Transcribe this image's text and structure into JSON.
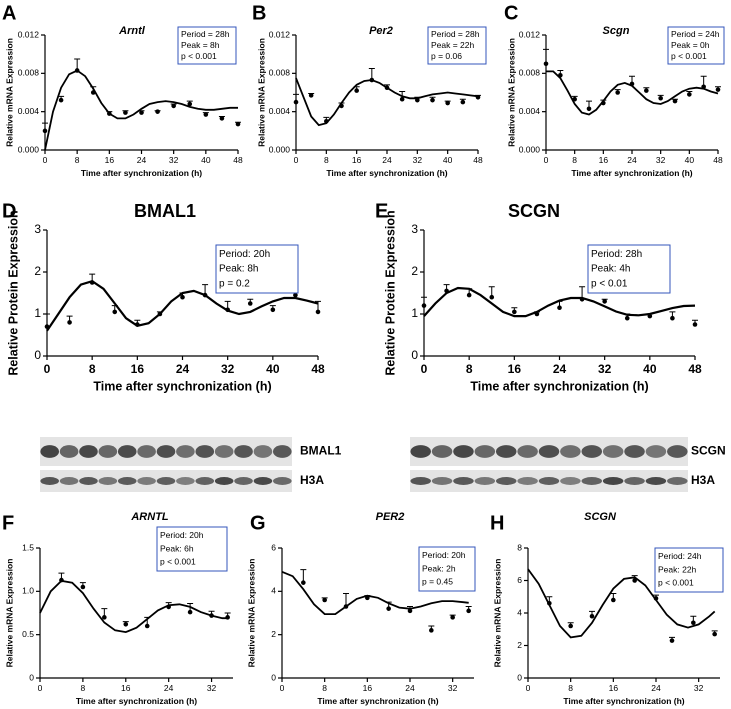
{
  "chart_data": [
    {
      "type": "line",
      "panel": "A",
      "title": "Arntl",
      "title_italic": true,
      "xlabel": "Time after synchronization (h)",
      "ylabel": "Relative mRNA Expression",
      "xlim": [
        0,
        48
      ],
      "ylim": [
        0,
        0.012
      ],
      "xticks": [
        0,
        8,
        16,
        24,
        32,
        40,
        48
      ],
      "yticks": [
        {
          "value": 0,
          "label": "0.000"
        },
        {
          "value": 0.004,
          "label": "0.004"
        },
        {
          "value": 0.008,
          "label": "0.008"
        },
        {
          "value": 0.012,
          "label": "0.012"
        }
      ],
      "annotation": [
        "Period = 28h",
        "Peak = 8h",
        "p < 0.001"
      ],
      "series": [
        {
          "style": "points",
          "color": "#000000",
          "x": [
            0,
            4,
            8,
            12,
            16,
            20,
            24,
            28,
            32,
            36,
            40,
            44,
            48
          ],
          "values": [
            0.002,
            0.0052,
            0.0083,
            0.006,
            0.0038,
            0.0039,
            0.0039,
            0.004,
            0.0046,
            0.0048,
            0.0037,
            0.0033,
            0.0027
          ],
          "errors": [
            0.0008,
            0.0004,
            0.0012,
            0.0006,
            0.0002,
            0.0002,
            0.0002,
            0.0001,
            0.0002,
            0.0003,
            0.0002,
            0.0002,
            0.0002
          ]
        },
        {
          "style": "line",
          "color": "#000000",
          "x": [
            0,
            2,
            4,
            6,
            8,
            10,
            12,
            14,
            16,
            18,
            20,
            22,
            24,
            26,
            28,
            30,
            32,
            34,
            36,
            38,
            40,
            42,
            44,
            46,
            48
          ],
          "values": [
            0,
            0.004,
            0.0065,
            0.0079,
            0.0083,
            0.0077,
            0.0064,
            0.0049,
            0.0038,
            0.0033,
            0.0033,
            0.0037,
            0.0043,
            0.0048,
            0.005,
            0.0051,
            0.005,
            0.0048,
            0.0045,
            0.0043,
            0.0042,
            0.0042,
            0.0043,
            0.0044,
            0.0044
          ]
        }
      ]
    },
    {
      "type": "line",
      "panel": "B",
      "title": "Per2",
      "title_italic": true,
      "xlabel": "Time after synchronization (h)",
      "ylabel": "Relative mRNA Expression",
      "xlim": [
        0,
        48
      ],
      "ylim": [
        0,
        0.012
      ],
      "xticks": [
        0,
        8,
        16,
        24,
        32,
        40,
        48
      ],
      "yticks": [
        {
          "value": 0,
          "label": "0.000"
        },
        {
          "value": 0.004,
          "label": "0.004"
        },
        {
          "value": 0.008,
          "label": "0.008"
        },
        {
          "value": 0.012,
          "label": "0.012"
        }
      ],
      "annotation": [
        "Period = 28h",
        "Peak = 22h",
        "p = 0.06"
      ],
      "series": [
        {
          "style": "points",
          "color": "#000000",
          "x": [
            0,
            4,
            8,
            12,
            16,
            20,
            24,
            28,
            32,
            36,
            40,
            44,
            48
          ],
          "values": [
            0.005,
            0.0057,
            0.003,
            0.0046,
            0.0062,
            0.0073,
            0.0065,
            0.0053,
            0.0052,
            0.0052,
            0.0049,
            0.005,
            0.0055
          ],
          "errors": [
            0.0008,
            0.0002,
            0.0004,
            0.0003,
            0.0004,
            0.0012,
            0.0003,
            0.0008,
            0.0003,
            0.0003,
            0.0002,
            0.0003,
            0.0002
          ]
        },
        {
          "style": "line",
          "color": "#000000",
          "x": [
            0,
            2,
            4,
            6,
            8,
            10,
            12,
            14,
            16,
            18,
            20,
            22,
            24,
            26,
            28,
            30,
            32,
            34,
            36,
            38,
            40,
            42,
            44,
            46,
            48
          ],
          "values": [
            0.0075,
            0.0055,
            0.0035,
            0.0026,
            0.0028,
            0.0037,
            0.0049,
            0.006,
            0.0068,
            0.0072,
            0.0073,
            0.007,
            0.0065,
            0.006,
            0.0056,
            0.0054,
            0.0054,
            0.0056,
            0.0058,
            0.0059,
            0.006,
            0.0059,
            0.0058,
            0.0057,
            0.0056
          ]
        }
      ]
    },
    {
      "type": "line",
      "panel": "C",
      "title": "Scgn",
      "title_italic": true,
      "xlabel": "Time after synchronization (h)",
      "ylabel": "Relative mRNA Expression",
      "xlim": [
        0,
        48
      ],
      "ylim": [
        0,
        0.012
      ],
      "xticks": [
        0,
        8,
        16,
        24,
        32,
        40,
        48
      ],
      "yticks": [
        {
          "value": 0,
          "label": "0.000"
        },
        {
          "value": 0.004,
          "label": "0.004"
        },
        {
          "value": 0.008,
          "label": "0.008"
        },
        {
          "value": 0.012,
          "label": "0.012"
        }
      ],
      "annotation": [
        "Period = 24h",
        "Peak = 0h",
        "p < 0.001"
      ],
      "series": [
        {
          "style": "points",
          "color": "#000000",
          "x": [
            0,
            4,
            8,
            12,
            16,
            20,
            24,
            28,
            32,
            36,
            40,
            44,
            48
          ],
          "values": [
            0.009,
            0.0078,
            0.0053,
            0.0043,
            0.0049,
            0.006,
            0.0069,
            0.0062,
            0.0054,
            0.0051,
            0.0058,
            0.0066,
            0.0063
          ],
          "errors": [
            0.0015,
            0.0005,
            0.0003,
            0.0008,
            0.0003,
            0.0003,
            0.0008,
            0.0003,
            0.0003,
            0.0002,
            0.0003,
            0.0011,
            0.0003
          ]
        },
        {
          "style": "line",
          "color": "#000000",
          "x": [
            0,
            2,
            4,
            6,
            8,
            10,
            12,
            14,
            16,
            18,
            20,
            22,
            24,
            26,
            28,
            30,
            32,
            34,
            36,
            38,
            40,
            42,
            44,
            46,
            48
          ],
          "values": [
            0.0082,
            0.0082,
            0.0075,
            0.0062,
            0.0048,
            0.0039,
            0.0037,
            0.0042,
            0.0051,
            0.0061,
            0.0068,
            0.007,
            0.0067,
            0.006,
            0.0053,
            0.0049,
            0.0048,
            0.0051,
            0.0056,
            0.0061,
            0.0064,
            0.0065,
            0.0064,
            0.0061,
            0.0059
          ]
        }
      ]
    },
    {
      "type": "line",
      "panel": "D",
      "title": "BMAL1",
      "title_italic": false,
      "xlabel": "Time after synchronization (h)",
      "ylabel": "Relative Protein Expression",
      "xlim": [
        0,
        48
      ],
      "ylim": [
        0,
        3
      ],
      "xticks": [
        0,
        8,
        16,
        24,
        32,
        40,
        48
      ],
      "yticks": [
        0,
        1,
        2,
        3
      ],
      "annotation": [
        "Period: 20h",
        "Peak: 8h",
        "p = 0.2"
      ],
      "blot_labels": [
        "BMAL1",
        "H3A"
      ],
      "series": [
        {
          "style": "points",
          "color": "#000000",
          "x": [
            0,
            4,
            8,
            12,
            16,
            20,
            24,
            28,
            32,
            36,
            40,
            44,
            48
          ],
          "values": [
            0.7,
            0.8,
            1.75,
            1.05,
            0.75,
            1.0,
            1.4,
            1.45,
            1.1,
            1.25,
            1.1,
            1.45,
            1.05
          ],
          "errors": [
            0.3,
            0.15,
            0.2,
            0.15,
            0.1,
            0.05,
            0.1,
            0.25,
            0.2,
            0.1,
            0.1,
            0.25,
            0.25
          ]
        },
        {
          "style": "line",
          "color": "#000000",
          "x": [
            0,
            2,
            4,
            6,
            8,
            10,
            12,
            14,
            16,
            18,
            20,
            22,
            24,
            26,
            28,
            30,
            32,
            34,
            36,
            38,
            40,
            42,
            44,
            46,
            48
          ],
          "values": [
            0.6,
            1.0,
            1.4,
            1.7,
            1.78,
            1.6,
            1.25,
            0.9,
            0.72,
            0.78,
            1.0,
            1.3,
            1.5,
            1.55,
            1.45,
            1.25,
            1.08,
            1.0,
            1.05,
            1.18,
            1.3,
            1.38,
            1.38,
            1.32,
            1.25
          ]
        }
      ]
    },
    {
      "type": "line",
      "panel": "E",
      "title": "SCGN",
      "title_italic": false,
      "xlabel": "Time after synchronization (h)",
      "ylabel": "Relative Protein Expression",
      "xlim": [
        0,
        48
      ],
      "ylim": [
        0,
        3
      ],
      "xticks": [
        0,
        8,
        16,
        24,
        32,
        40,
        48
      ],
      "yticks": [
        0,
        1,
        2,
        3
      ],
      "annotation": [
        "Period: 28h",
        "Peak: 4h",
        "p < 0.01"
      ],
      "blot_labels": [
        "SCGN",
        "H3A"
      ],
      "series": [
        {
          "style": "points",
          "color": "#000000",
          "x": [
            0,
            4,
            8,
            12,
            16,
            20,
            24,
            28,
            32,
            36,
            40,
            44,
            48
          ],
          "values": [
            1.2,
            1.55,
            1.45,
            1.4,
            1.05,
            1.0,
            1.15,
            1.35,
            1.3,
            0.9,
            0.95,
            0.9,
            0.75
          ],
          "errors": [
            0.2,
            0.15,
            0.15,
            0.25,
            0.1,
            0.05,
            0.15,
            0.3,
            0.05,
            0.1,
            0.05,
            0.15,
            0.1
          ]
        },
        {
          "style": "line",
          "color": "#000000",
          "x": [
            0,
            2,
            4,
            6,
            8,
            10,
            12,
            14,
            16,
            18,
            20,
            22,
            24,
            26,
            28,
            30,
            32,
            34,
            36,
            38,
            40,
            42,
            44,
            46,
            48
          ],
          "values": [
            0.95,
            1.25,
            1.5,
            1.62,
            1.6,
            1.45,
            1.25,
            1.05,
            0.95,
            0.95,
            1.05,
            1.2,
            1.32,
            1.38,
            1.38,
            1.3,
            1.18,
            1.06,
            0.98,
            0.97,
            1.0,
            1.07,
            1.14,
            1.19,
            1.2
          ]
        }
      ]
    },
    {
      "type": "line",
      "panel": "F",
      "title": "ARNTL",
      "title_italic": true,
      "xlabel": "Time after synchronization (h)",
      "ylabel": "Relative mRNA Expression",
      "xlim": [
        0,
        36
      ],
      "ylim": [
        0,
        1.5
      ],
      "xticks": [
        0,
        8,
        16,
        24,
        32
      ],
      "yticks": [
        0,
        {
          "value": 0.5,
          "label": "0.5"
        },
        {
          "value": 1,
          "label": "1.0"
        },
        {
          "value": 1.5,
          "label": "1.5"
        }
      ],
      "annotation": [
        "Period: 20h",
        "Peak: 6h",
        "p < 0.001"
      ],
      "series": [
        {
          "style": "points",
          "color": "#000000",
          "x": [
            4,
            8,
            12,
            16,
            20,
            24,
            28,
            32,
            35
          ],
          "values": [
            1.13,
            1.05,
            0.7,
            0.62,
            0.6,
            0.82,
            0.76,
            0.72,
            0.7
          ],
          "errors": [
            0.08,
            0.05,
            0.1,
            0.03,
            0.1,
            0.05,
            0.1,
            0.05,
            0.05
          ]
        },
        {
          "style": "line",
          "color": "#000000",
          "x": [
            0,
            2,
            4,
            6,
            8,
            10,
            12,
            14,
            16,
            18,
            20,
            22,
            24,
            26,
            28,
            30,
            32,
            34,
            35
          ],
          "values": [
            0.75,
            1.0,
            1.12,
            1.1,
            0.98,
            0.8,
            0.64,
            0.55,
            0.53,
            0.58,
            0.68,
            0.78,
            0.84,
            0.85,
            0.82,
            0.76,
            0.72,
            0.69,
            0.69
          ]
        }
      ]
    },
    {
      "type": "line",
      "panel": "G",
      "title": "PER2",
      "title_italic": true,
      "xlabel": "Time after synchronization (h)",
      "ylabel": "Relative mRNA Expression",
      "xlim": [
        0,
        36
      ],
      "ylim": [
        0,
        6
      ],
      "xticks": [
        0,
        8,
        16,
        24,
        32
      ],
      "yticks": [
        0,
        2,
        4,
        6
      ],
      "annotation": [
        "Period: 20h",
        "Peak: 2h",
        "p = 0.45"
      ],
      "series": [
        {
          "style": "points",
          "color": "#000000",
          "x": [
            4,
            8,
            12,
            16,
            20,
            24,
            28,
            32,
            35
          ],
          "values": [
            4.4,
            3.6,
            3.3,
            3.7,
            3.2,
            3.1,
            2.2,
            2.8,
            3.1
          ],
          "errors": [
            0.6,
            0.1,
            0.6,
            0.1,
            0.3,
            0.2,
            0.2,
            0.1,
            0.2
          ]
        },
        {
          "style": "line",
          "color": "#000000",
          "x": [
            0,
            2,
            4,
            6,
            8,
            10,
            12,
            14,
            16,
            18,
            20,
            22,
            24,
            26,
            28,
            30,
            32,
            34,
            35
          ],
          "values": [
            4.9,
            4.7,
            4.1,
            3.4,
            2.95,
            2.95,
            3.3,
            3.65,
            3.8,
            3.7,
            3.45,
            3.25,
            3.2,
            3.3,
            3.45,
            3.55,
            3.55,
            3.5,
            3.47
          ]
        }
      ]
    },
    {
      "type": "line",
      "panel": "H",
      "title": "SCGN",
      "title_italic": true,
      "xlabel": "Time after synchronization (h)",
      "ylabel": "Relative mRNA Expression",
      "xlim": [
        0,
        36
      ],
      "ylim": [
        0,
        8
      ],
      "xticks": [
        0,
        8,
        16,
        24,
        32
      ],
      "yticks": [
        0,
        2,
        4,
        6,
        8
      ],
      "annotation": [
        "Period: 24h",
        "Peak: 22h",
        "p < 0.001"
      ],
      "series": [
        {
          "style": "points",
          "color": "#000000",
          "x": [
            4,
            8,
            12,
            16,
            20,
            24,
            27,
            31,
            35
          ],
          "values": [
            4.6,
            3.2,
            3.8,
            4.8,
            6.0,
            4.9,
            2.3,
            3.4,
            2.7
          ],
          "errors": [
            0.4,
            0.2,
            0.3,
            0.4,
            0.3,
            0.2,
            0.2,
            0.4,
            0.2
          ]
        },
        {
          "style": "line",
          "color": "#000000",
          "x": [
            0,
            2,
            4,
            6,
            8,
            10,
            12,
            14,
            16,
            18,
            20,
            22,
            24,
            26,
            28,
            30,
            32,
            34,
            35
          ],
          "values": [
            6.7,
            5.8,
            4.5,
            3.2,
            2.5,
            2.6,
            3.4,
            4.5,
            5.5,
            6.1,
            6.2,
            5.7,
            4.8,
            3.9,
            3.3,
            3.1,
            3.3,
            3.8,
            4.1
          ]
        }
      ]
    }
  ]
}
